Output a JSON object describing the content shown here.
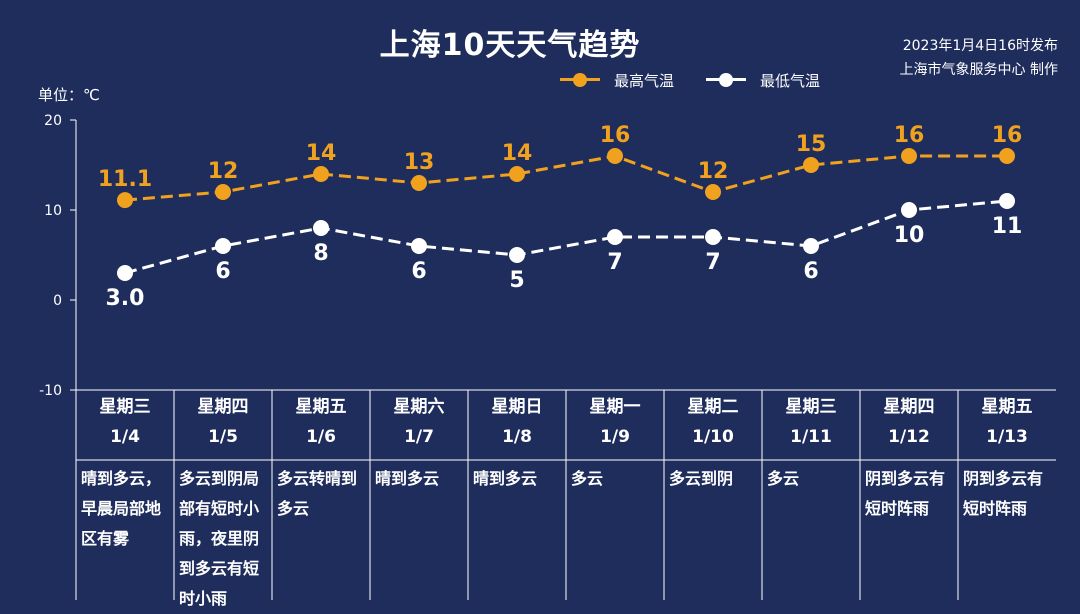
{
  "title": "上海10天天气趋势",
  "issue_time": "2023年1月4日16时发布",
  "producer": "上海市气象服务中心 制作",
  "unit_label": "单位：℃",
  "legend": {
    "high": "最高气温",
    "low": "最低气温"
  },
  "colors": {
    "background": "#1f2d5c",
    "high": "#f0a21f",
    "low": "#ffffff",
    "axis": "#ffffff"
  },
  "chart_data": {
    "type": "line",
    "categories": [
      "1/4",
      "1/5",
      "1/6",
      "1/7",
      "1/8",
      "1/9",
      "1/10",
      "1/11",
      "1/12",
      "1/13"
    ],
    "series": [
      {
        "name": "最高气温",
        "values": [
          11.1,
          12,
          14,
          13,
          14,
          16,
          12,
          15,
          16,
          16
        ],
        "labels": [
          "11.1",
          "12",
          "14",
          "13",
          "14",
          "16",
          "12",
          "15",
          "16",
          "16"
        ]
      },
      {
        "name": "最低气温",
        "values": [
          3.0,
          6,
          8,
          6,
          5,
          7,
          7,
          6,
          10,
          11
        ],
        "labels": [
          "3.0",
          "6",
          "8",
          "6",
          "5",
          "7",
          "7",
          "6",
          "10",
          "11"
        ]
      }
    ],
    "ylim": [
      -10,
      20
    ],
    "yticks": [
      "20",
      "10",
      "0",
      "-10"
    ],
    "line_style": "dashed",
    "legend_position": "top-center"
  },
  "days": [
    {
      "weekday": "星期三",
      "date": "1/4",
      "condition": "晴到多云，早晨局部地区有雾"
    },
    {
      "weekday": "星期四",
      "date": "1/5",
      "condition": "多云到阴局部有短时小雨，夜里阴到多云有短时小雨"
    },
    {
      "weekday": "星期五",
      "date": "1/6",
      "condition": "多云转晴到多云"
    },
    {
      "weekday": "星期六",
      "date": "1/7",
      "condition": "晴到多云"
    },
    {
      "weekday": "星期日",
      "date": "1/8",
      "condition": "晴到多云"
    },
    {
      "weekday": "星期一",
      "date": "1/9",
      "condition": "多云"
    },
    {
      "weekday": "星期二",
      "date": "1/10",
      "condition": "多云到阴"
    },
    {
      "weekday": "星期三",
      "date": "1/11",
      "condition": "多云"
    },
    {
      "weekday": "星期四",
      "date": "1/12",
      "condition": "阴到多云有短时阵雨"
    },
    {
      "weekday": "星期五",
      "date": "1/13",
      "condition": "阴到多云有短时阵雨"
    }
  ]
}
